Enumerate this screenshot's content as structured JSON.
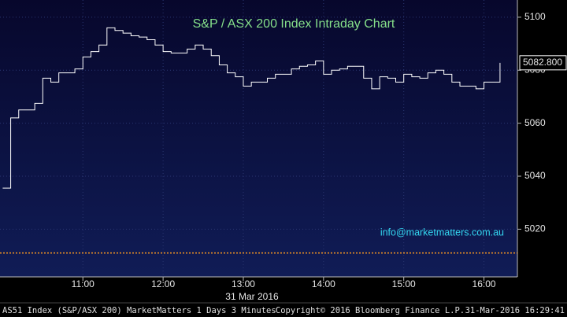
{
  "chart_data": {
    "type": "line",
    "title": "S&P / ASX 200 Index Intraday Chart",
    "x": [
      "10:00",
      "10:06",
      "10:12",
      "10:18",
      "10:24",
      "10:30",
      "10:36",
      "10:42",
      "10:48",
      "10:54",
      "11:00",
      "11:06",
      "11:12",
      "11:18",
      "11:24",
      "11:30",
      "11:36",
      "11:42",
      "11:48",
      "11:54",
      "12:00",
      "12:06",
      "12:12",
      "12:18",
      "12:24",
      "12:30",
      "12:36",
      "12:42",
      "12:48",
      "12:54",
      "13:00",
      "13:06",
      "13:12",
      "13:18",
      "13:24",
      "13:30",
      "13:36",
      "13:42",
      "13:48",
      "13:54",
      "14:00",
      "14:06",
      "14:12",
      "14:18",
      "14:24",
      "14:30",
      "14:36",
      "14:42",
      "14:48",
      "14:54",
      "15:00",
      "15:06",
      "15:12",
      "15:18",
      "15:24",
      "15:30",
      "15:36",
      "15:42",
      "15:48",
      "15:54",
      "16:00",
      "16:06",
      "16:12"
    ],
    "values": [
      5035.5,
      5062,
      5065,
      5065,
      5067.5,
      5077,
      5075.5,
      5079,
      5079,
      5080.5,
      5085,
      5087,
      5089.5,
      5096,
      5095,
      5094,
      5093,
      5092.5,
      5091.5,
      5089.5,
      5087,
      5086.5,
      5086.5,
      5088,
      5089.5,
      5088,
      5085.5,
      5082,
      5079,
      5077.5,
      5074,
      5075.5,
      5075.5,
      5077,
      5078.5,
      5078.5,
      5080.5,
      5081.5,
      5082,
      5083.5,
      5078.5,
      5080,
      5080.5,
      5081.5,
      5081.5,
      5077,
      5073,
      5077.5,
      5077,
      5075.5,
      5078.5,
      5077.5,
      5077,
      5079,
      5080,
      5078.5,
      5075.5,
      5074,
      5074,
      5073,
      5075.5,
      5075.5,
      5082.8
    ],
    "color": "#ffffff",
    "xlim": [
      "09:58",
      "16:25"
    ],
    "xticks": [
      "11:00",
      "12:00",
      "13:00",
      "14:00",
      "15:00",
      "16:00"
    ],
    "ylim": [
      5002,
      5106.5
    ],
    "yticks": [
      5020,
      5040,
      5060,
      5080,
      5100
    ],
    "y_axis_side": "right",
    "grid": true,
    "last_price": {
      "value": 5082.8,
      "label": "5082.800"
    },
    "reference_line": {
      "value": 5011,
      "color": "#ff9a1f"
    },
    "date_label": "31 Mar 2016",
    "annotation": "info@marketmatters.com.au",
    "footer": {
      "left": "AS51 Index (S&P/ASX 200) MarketMatters 1 Days 3 Minutes",
      "center": "Copyright© 2016 Bloomberg Finance L.P.",
      "right": "31-Mar-2016 16:29:41"
    }
  }
}
